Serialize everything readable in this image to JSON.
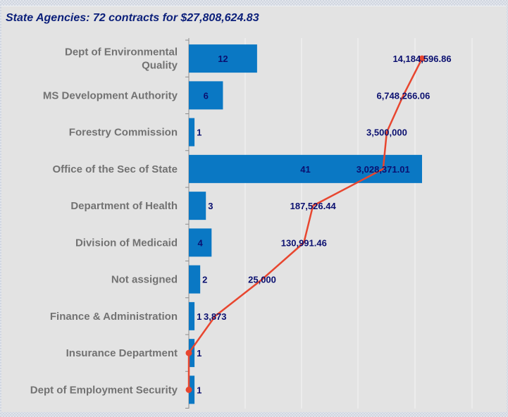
{
  "title": "State Agencies: 72 contracts for $27,808,624.83",
  "colors": {
    "bar": "#0a78c4",
    "line": "#e8462f",
    "grid": "#f4f4f4",
    "value_text": "#0b1070",
    "category_text": "#727272"
  },
  "chart_data": {
    "type": "bar",
    "orientation": "horizontal",
    "title": "State Agencies: 72 contracts for $27,808,624.83",
    "categories": [
      "Dept of Environmental Quality",
      "MS Development Authority",
      "Forestry Commission",
      "Office of the Sec of State",
      "Department of Health",
      "Division of Medicaid",
      "Not assigned",
      "Finance & Administration",
      "Insurance Department",
      "Dept of Employment Security"
    ],
    "category_label_lines": [
      [
        "Dept of Environmental",
        "Quality"
      ],
      [
        "MS Development Authority"
      ],
      [
        "Forestry Commission"
      ],
      [
        "Office of the Sec of State"
      ],
      [
        "Department of Health"
      ],
      [
        "Division of Medicaid"
      ],
      [
        "Not assigned"
      ],
      [
        "Finance & Administration"
      ],
      [
        "Insurance Department"
      ],
      [
        "Dept of Employment Security"
      ]
    ],
    "series": [
      {
        "type": "bar",
        "values": [
          12,
          6,
          1,
          41,
          3,
          4,
          2,
          1,
          1,
          1
        ],
        "labels": [
          "12",
          "6",
          "1",
          "41",
          "3",
          "4",
          "2",
          "1",
          "1",
          "1"
        ]
      },
      {
        "type": "line",
        "values": [
          14184596.86,
          6748266.06,
          3500000,
          3028371.01,
          187526.44,
          130991.46,
          25000,
          3873,
          0,
          0
        ],
        "labels": [
          "14,184,596.86",
          "6,748,266.06",
          "3,500,000",
          "3,028,371.01",
          "187,526.44",
          "130,991.46",
          "25,000",
          "3,873",
          "",
          ""
        ]
      }
    ],
    "grid": true,
    "legend": "none"
  }
}
